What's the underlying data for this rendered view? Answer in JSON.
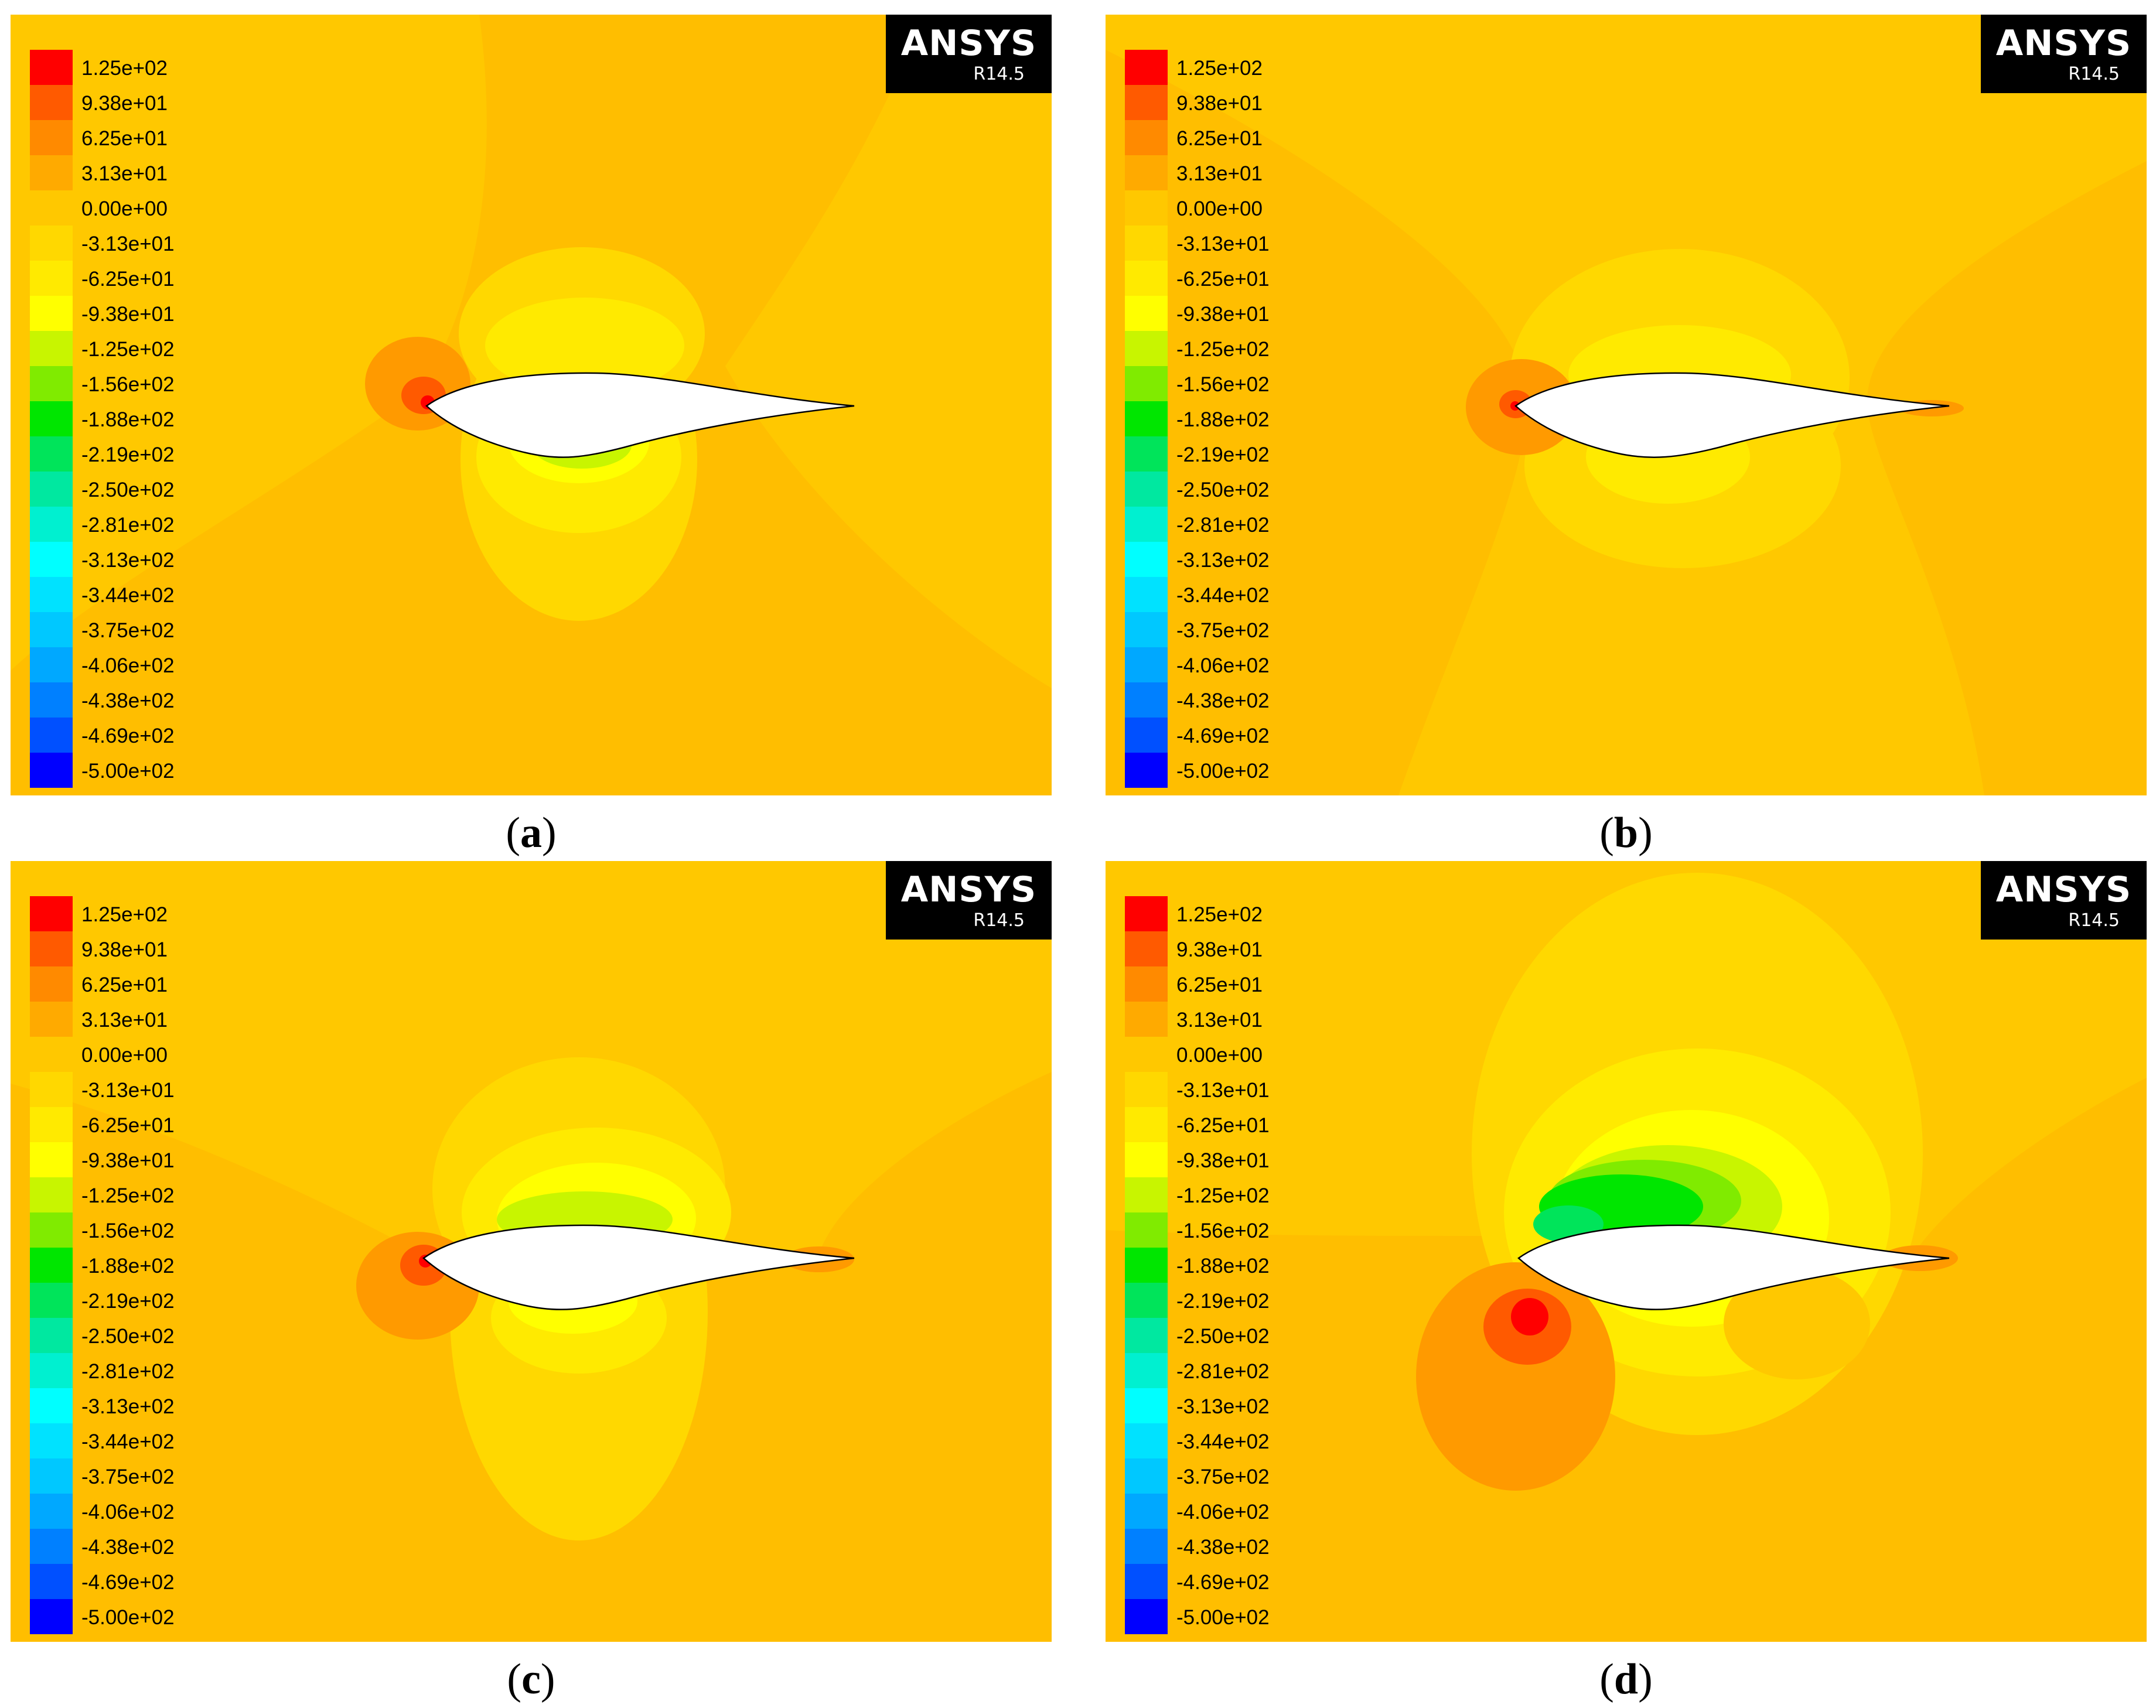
{
  "legend": {
    "ticks": [
      "1.25e+02",
      "9.38e+01",
      "6.25e+01",
      "3.13e+01",
      "0.00e+00",
      "-3.13e+01",
      "-6.25e+01",
      "-9.38e+01",
      "-1.25e+02",
      "-1.56e+02",
      "-1.88e+02",
      "-2.19e+02",
      "-2.50e+02",
      "-2.81e+02",
      "-3.13e+02",
      "-3.44e+02",
      "-3.75e+02",
      "-4.06e+02",
      "-4.38e+02",
      "-4.69e+02",
      "-5.00e+02"
    ],
    "colors": [
      "#ff0000",
      "#ff5a00",
      "#ff8a00",
      "#ffaa00",
      "#ffc800",
      "#ffd800",
      "#ffea00",
      "#ffff00",
      "#c8f500",
      "#80eb00",
      "#00e600",
      "#00e45a",
      "#00e8a0",
      "#00f0d0",
      "#00ffff",
      "#00e2ff",
      "#00c8ff",
      "#00a8ff",
      "#0080ff",
      "#0050ff",
      "#0000ff"
    ]
  },
  "logo": {
    "name": "ANSYS",
    "version": "R14.5"
  },
  "panels": [
    {
      "id": "a",
      "caption_open": "(",
      "caption_letter": "a",
      "caption_close": ")"
    },
    {
      "id": "b",
      "caption_open": "(",
      "caption_letter": "b",
      "caption_close": ")"
    },
    {
      "id": "c",
      "caption_open": "(",
      "caption_letter": "c",
      "caption_close": ")"
    },
    {
      "id": "d",
      "caption_open": "(",
      "caption_letter": "d",
      "caption_close": ")"
    }
  ]
}
